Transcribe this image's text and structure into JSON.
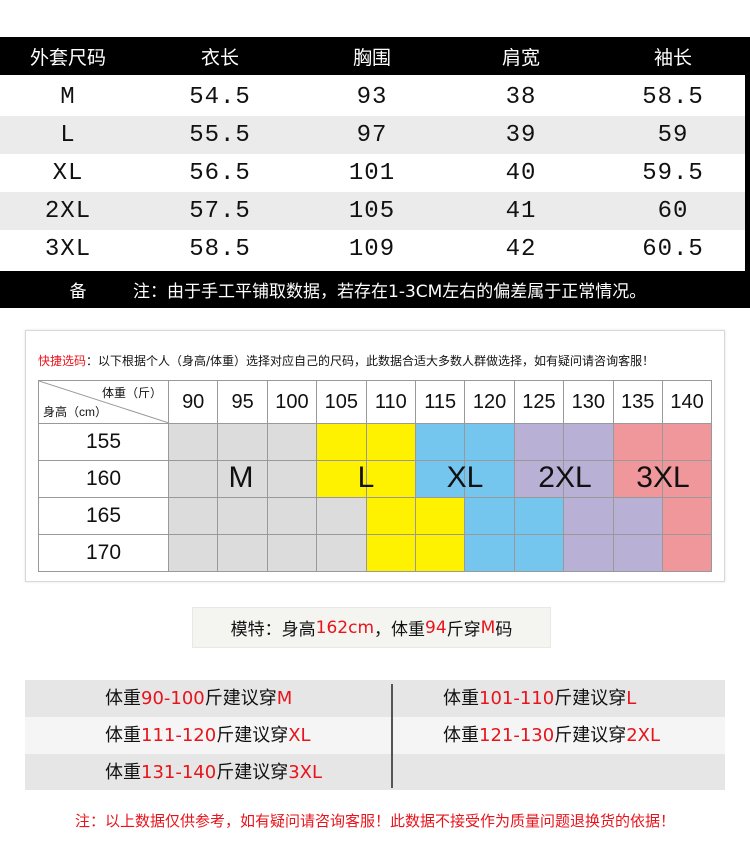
{
  "size_table": {
    "headers": [
      "外套尺码",
      "衣长",
      "胸围",
      "肩宽",
      "袖长"
    ],
    "rows": [
      [
        "M",
        "54.5",
        "93",
        "38",
        "58.5"
      ],
      [
        "L",
        "55.5",
        "97",
        "39",
        "59"
      ],
      [
        "XL",
        "56.5",
        "101",
        "40",
        "59.5"
      ],
      [
        "2XL",
        "57.5",
        "105",
        "41",
        "60"
      ],
      [
        "3XL",
        "58.5",
        "109",
        "42",
        "60.5"
      ]
    ],
    "note_label": "备",
    "note_text": "注：由于手工平铺取数据，若存在1-3CM左右的偏差属于正常情况。"
  },
  "quick_select": {
    "title": "快捷选码",
    "text": "：以下根据个人（身高/体重）选择对应自己的尺码，此数据合适大多数人群做选择，如有疑问请咨询客服！",
    "weight_label": "体重（斤）",
    "height_label": "身高（cm）",
    "weights": [
      "90",
      "95",
      "100",
      "105",
      "110",
      "115",
      "120",
      "125",
      "130",
      "135",
      "140"
    ],
    "heights": [
      "155",
      "160",
      "165",
      "170"
    ],
    "size_map": [
      [
        "M",
        "M",
        "M",
        "L",
        "L",
        "XL",
        "XL",
        "2XL",
        "2XL",
        "3XL",
        "3XL"
      ],
      [
        "M",
        "M",
        "M",
        "L",
        "L",
        "XL",
        "XL",
        "2XL",
        "2XL",
        "3XL",
        "3XL"
      ],
      [
        "M",
        "M",
        "M",
        "M",
        "L",
        "L",
        "XL",
        "XL",
        "2XL",
        "2XL",
        "3XL"
      ],
      [
        "M",
        "M",
        "M",
        "M",
        "L",
        "L",
        "XL",
        "XL",
        "2XL",
        "2XL",
        "3XL"
      ]
    ],
    "size_labels": [
      "M",
      "L",
      "XL",
      "2XL",
      "3XL"
    ],
    "colors": {
      "M": "#dcdcdc",
      "L": "#fff200",
      "XL": "#74c6ef",
      "2XL": "#b9b1d5",
      "3XL": "#f0979b"
    }
  },
  "model": {
    "parts": [
      "模特：身高",
      "162cm",
      "，体重",
      "94",
      "斤穿",
      "M",
      "码"
    ]
  },
  "suggestions": [
    [
      "体重",
      "90-100",
      "斤建议穿",
      "M"
    ],
    [
      "体重",
      "101-110",
      "斤建议穿",
      "L"
    ],
    [
      "体重",
      "111-120",
      "斤建议穿",
      "XL"
    ],
    [
      "体重",
      "121-130",
      "斤建议穿",
      "2XL"
    ],
    [
      "体重",
      "131-140",
      "斤建议穿",
      "3XL"
    ]
  ],
  "disclaimer": "注：以上数据仅供参考，如有疑问请咨询客服！此数据不接受作为质量问题退换货的依据！",
  "accent_color": "#e8141c"
}
